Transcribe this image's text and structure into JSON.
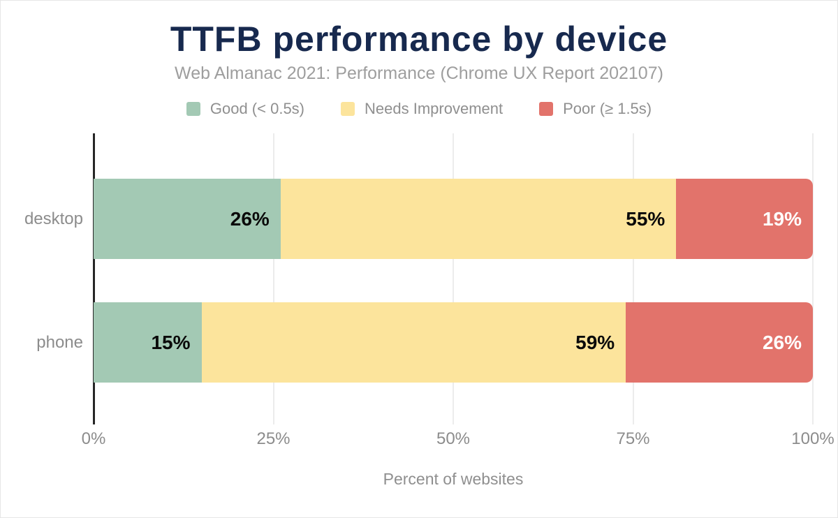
{
  "header": {
    "title": "TTFB performance by device",
    "subtitle": "Web Almanac 2021: Performance (Chrome UX Report 202107)"
  },
  "legend": [
    {
      "label": "Good (< 0.5s)",
      "color": "#a3c9b4"
    },
    {
      "label": "Needs Improvement",
      "color": "#fce49c"
    },
    {
      "label": "Poor (≥ 1.5s)",
      "color": "#e2736b"
    }
  ],
  "chart_data": {
    "type": "bar",
    "orientation": "horizontal",
    "stacked": true,
    "title": "TTFB performance by device",
    "subtitle": "Web Almanac 2021: Performance (Chrome UX Report 202107)",
    "categories": [
      "desktop",
      "phone"
    ],
    "series": [
      {
        "name": "Good (< 0.5s)",
        "color": "#a3c9b4",
        "label_color": "#0a0a0a",
        "values": [
          26,
          15
        ],
        "labels": [
          "26%",
          "15%"
        ]
      },
      {
        "name": "Needs Improvement",
        "color": "#fce49c",
        "label_color": "#0a0a0a",
        "values": [
          55,
          59
        ],
        "labels": [
          "55%",
          "59%"
        ]
      },
      {
        "name": "Poor (≥ 1.5s)",
        "color": "#e2736b",
        "label_color": "#ffffff",
        "values": [
          19,
          26
        ],
        "labels": [
          "19%",
          "26%"
        ]
      }
    ],
    "xlim": [
      0,
      100
    ],
    "x_ticks": [
      "0%",
      "25%",
      "50%",
      "75%",
      "100%"
    ],
    "x_tick_positions": [
      0,
      25,
      50,
      75,
      100
    ],
    "gridlines": [
      25,
      50,
      75,
      100
    ],
    "xlabel": "Percent of websites",
    "legend_position": "top",
    "grid": "vertical"
  },
  "colors": {
    "title": "#17294e",
    "subtitle": "#9e9e9e",
    "axis_text": "#8c8c8c",
    "gridline": "#ececec",
    "axis_line": "#262626",
    "background": "#ffffff"
  }
}
